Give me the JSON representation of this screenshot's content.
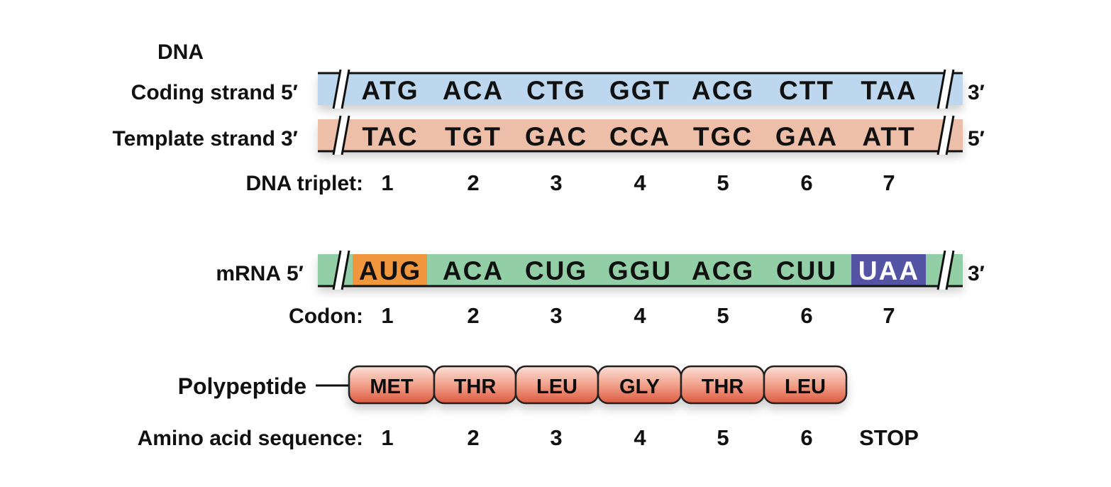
{
  "dna": {
    "title": "DNA",
    "coding": {
      "label": "Coding strand",
      "left_end": "5′",
      "right_end": "3′",
      "codons": [
        "ATG",
        "ACA",
        "CTG",
        "GGT",
        "ACG",
        "CTT",
        "TAA"
      ],
      "color": "#bcd7ee"
    },
    "template": {
      "label": "Template strand",
      "left_end": "3′",
      "right_end": "5′",
      "codons": [
        "TAC",
        "TGT",
        "GAC",
        "CCA",
        "TGC",
        "GAA",
        "ATT"
      ],
      "color": "#eebfa8"
    },
    "triplet_label": "DNA triplet:",
    "triplet_numbers": [
      "1",
      "2",
      "3",
      "4",
      "5",
      "6",
      "7"
    ]
  },
  "mrna": {
    "label": "mRNA",
    "left_end": "5′",
    "right_end": "3′",
    "codons": [
      "AUG",
      "ACA",
      "CUG",
      "GGU",
      "ACG",
      "CUU",
      "UAA"
    ],
    "color": "#93cfa6",
    "start_color": "#f0963c",
    "stop_color": "#5553a4",
    "codon_label": "Codon:",
    "codon_numbers": [
      "1",
      "2",
      "3",
      "4",
      "5",
      "6",
      "7"
    ]
  },
  "polypeptide": {
    "label": "Polypeptide",
    "amino_acids": [
      "MET",
      "THR",
      "LEU",
      "GLY",
      "THR",
      "LEU"
    ],
    "sequence_label": "Amino acid sequence:",
    "sequence_numbers": [
      "1",
      "2",
      "3",
      "4",
      "5",
      "6",
      "STOP"
    ]
  }
}
